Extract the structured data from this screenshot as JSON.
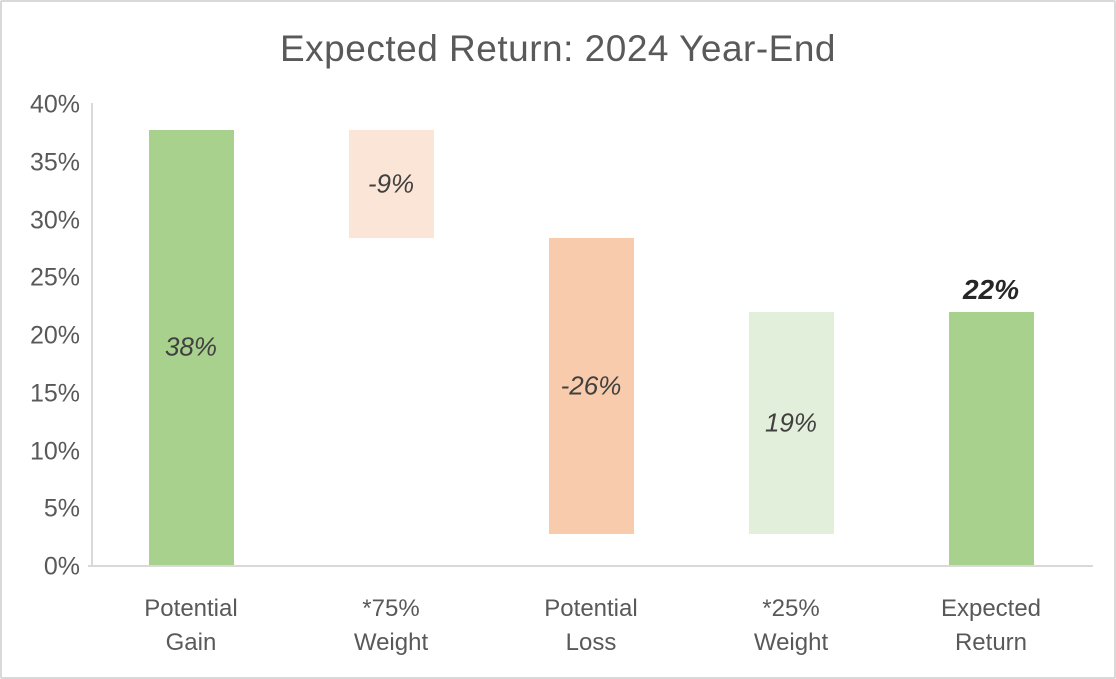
{
  "frame": {
    "background": "#ffffff",
    "border_color": "#d9d9d9",
    "axis_line_color": "#d9d9d9",
    "title_color": "#595959",
    "axis_label_color": "#595959",
    "value_label_color": "#404040",
    "total_label_color": "#262626"
  },
  "chart_data": {
    "type": "bar",
    "subtype": "waterfall",
    "title": "Expected Return: 2024 Year-End",
    "xlabel": "",
    "ylabel": "",
    "ylim": [
      0,
      40
    ],
    "grid": false,
    "legend": false,
    "y_ticks": [
      {
        "value": 0,
        "label": "0%"
      },
      {
        "value": 5,
        "label": "5%"
      },
      {
        "value": 10,
        "label": "10%"
      },
      {
        "value": 15,
        "label": "15%"
      },
      {
        "value": 20,
        "label": "20%"
      },
      {
        "value": 25,
        "label": "25%"
      },
      {
        "value": 30,
        "label": "30%"
      },
      {
        "value": 35,
        "label": "35%"
      },
      {
        "value": 40,
        "label": "40%"
      }
    ],
    "categories": [
      "Potential Gain",
      "*75% Weight",
      "Potential Loss",
      "*25% Weight",
      "Expected Return"
    ],
    "bars": [
      {
        "category": "Potential Gain",
        "category_lines": "Potential\nGain",
        "label": "38%",
        "start": 0,
        "end": 37.7,
        "color": "#a9d18e",
        "label_position": "inside"
      },
      {
        "category": "*75% Weight",
        "category_lines": "*75%\nWeight",
        "label": "-9%",
        "start": 28.3,
        "end": 37.7,
        "color": "#fbe5d6",
        "label_position": "inside"
      },
      {
        "category": "Potential Loss",
        "category_lines": "Potential\nLoss",
        "label": "-26%",
        "start": 2.7,
        "end": 28.3,
        "color": "#f8cbad",
        "label_position": "inside"
      },
      {
        "category": "*25% Weight",
        "category_lines": "*25%\nWeight",
        "label": "19%",
        "start": 2.7,
        "end": 21.9,
        "color": "#e2efda",
        "label_position": "inside"
      },
      {
        "category": "Expected Return",
        "category_lines": "Expected\nReturn",
        "label": "22%",
        "start": 0,
        "end": 21.9,
        "color": "#a9d18e",
        "label_position": "above"
      }
    ]
  }
}
